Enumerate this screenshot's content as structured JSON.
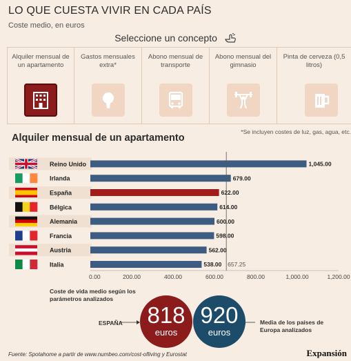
{
  "header": {
    "title": "LO QUE CUESTA VIVIR EN CADA PAÍS",
    "subtitle": "Coste medio, en euros",
    "select_label": "Seleccione un concepto"
  },
  "concepts": [
    {
      "label": "Alquiler mensual de un apartamento",
      "icon": "building-icon",
      "active": true
    },
    {
      "label": "Gastos mensuales extra*",
      "icon": "lightbulb-icon",
      "active": false
    },
    {
      "label": "Abono mensual de transporte",
      "icon": "bus-icon",
      "active": false
    },
    {
      "label": "Abono mensual del gimnasio",
      "icon": "weightlifter-icon",
      "active": false
    },
    {
      "label": "Pinta de cerveza (0,5 litros)",
      "icon": "beer-mug-icon",
      "active": false
    }
  ],
  "note": "*Se incluyen costes de luz, gas, agua, etc.",
  "chart_data": {
    "type": "bar",
    "orientation": "horizontal",
    "title": "Alquiler mensual de un apartamento",
    "categories": [
      "Reino Unido",
      "Irlanda",
      "España",
      "Bélgica",
      "Alemania",
      "Francia",
      "Austria",
      "Italia"
    ],
    "values": [
      1045.0,
      679.0,
      622.0,
      614.0,
      600.0,
      598.0,
      562.0,
      538.0
    ],
    "value_labels": [
      "1,045.00",
      "679.00",
      "622.00",
      "614.00",
      "600.00",
      "598.00",
      "562.00",
      "538.00"
    ],
    "xlim": [
      0,
      1200
    ],
    "x_ticks": [
      "0.00",
      "200.00",
      "400.00",
      "600.00",
      "800.00",
      "1,000.00",
      "1,200.00"
    ],
    "reference_line": {
      "value": 657.25,
      "label": "657.25"
    },
    "colors": {
      "default": "#3d5c82",
      "highlight": "#a31c1c"
    },
    "highlight": "España",
    "grid": false
  },
  "summary": {
    "left_caption": "Coste de vida medio según los parámetros analizados",
    "spain": {
      "label": "ESPAÑA",
      "value": "818",
      "unit": "euros",
      "color": "#8c1c1c"
    },
    "europe": {
      "label": "Media de los países de Europa analizados",
      "value": "920",
      "unit": "euros",
      "color": "#1d4c6b"
    }
  },
  "footer": {
    "source": "Fuente: Spotahome a partir de www.numbeo.com/cost-ofliving y Eurostat",
    "brand": "Expansión"
  }
}
